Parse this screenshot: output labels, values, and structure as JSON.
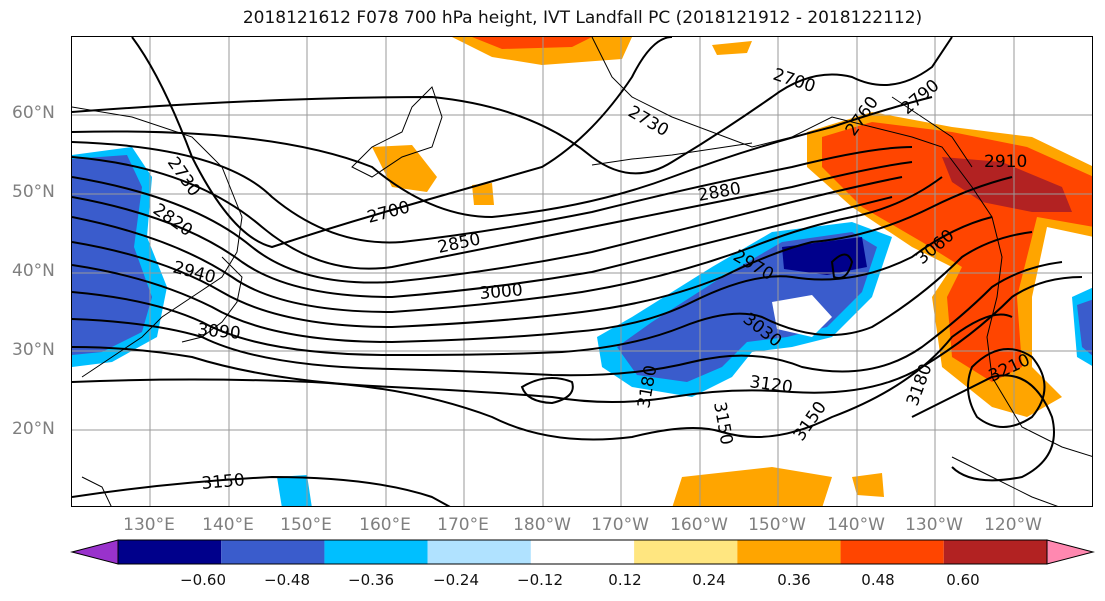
{
  "title": "2018121612 F078 700 hPa height, IVT Landfall PC (2018121912 - 2018122112)",
  "lat_labels": [
    "60°N",
    "50°N",
    "40°N",
    "30°N",
    "20°N"
  ],
  "lon_labels": [
    "130°E",
    "140°E",
    "150°E",
    "160°E",
    "170°E",
    "180°W",
    "170°W",
    "160°W",
    "150°W",
    "140°W",
    "130°W",
    "120°W"
  ],
  "contour_labels": [
    "2700",
    "2730",
    "2760",
    "2790",
    "2730",
    "2820",
    "2700",
    "2880",
    "2910",
    "2850",
    "2940",
    "2970",
    "3060",
    "3000",
    "3090",
    "3030",
    "3120",
    "3180",
    "3180",
    "3150",
    "3150",
    "3210",
    "3150"
  ],
  "colorbar": {
    "colors": [
      "#9932cc",
      "#00008b",
      "#3a5ccc",
      "#00bfff",
      "#b0e2ff",
      "#ffffff",
      "#ffe680",
      "#ffa500",
      "#ff4500",
      "#b22222",
      "#ff88b0"
    ],
    "tick_labels": [
      "−0.60",
      "−0.48",
      "−0.36",
      "−0.24",
      "−0.12",
      "0.12",
      "0.24",
      "0.36",
      "0.48",
      "0.60"
    ]
  }
}
